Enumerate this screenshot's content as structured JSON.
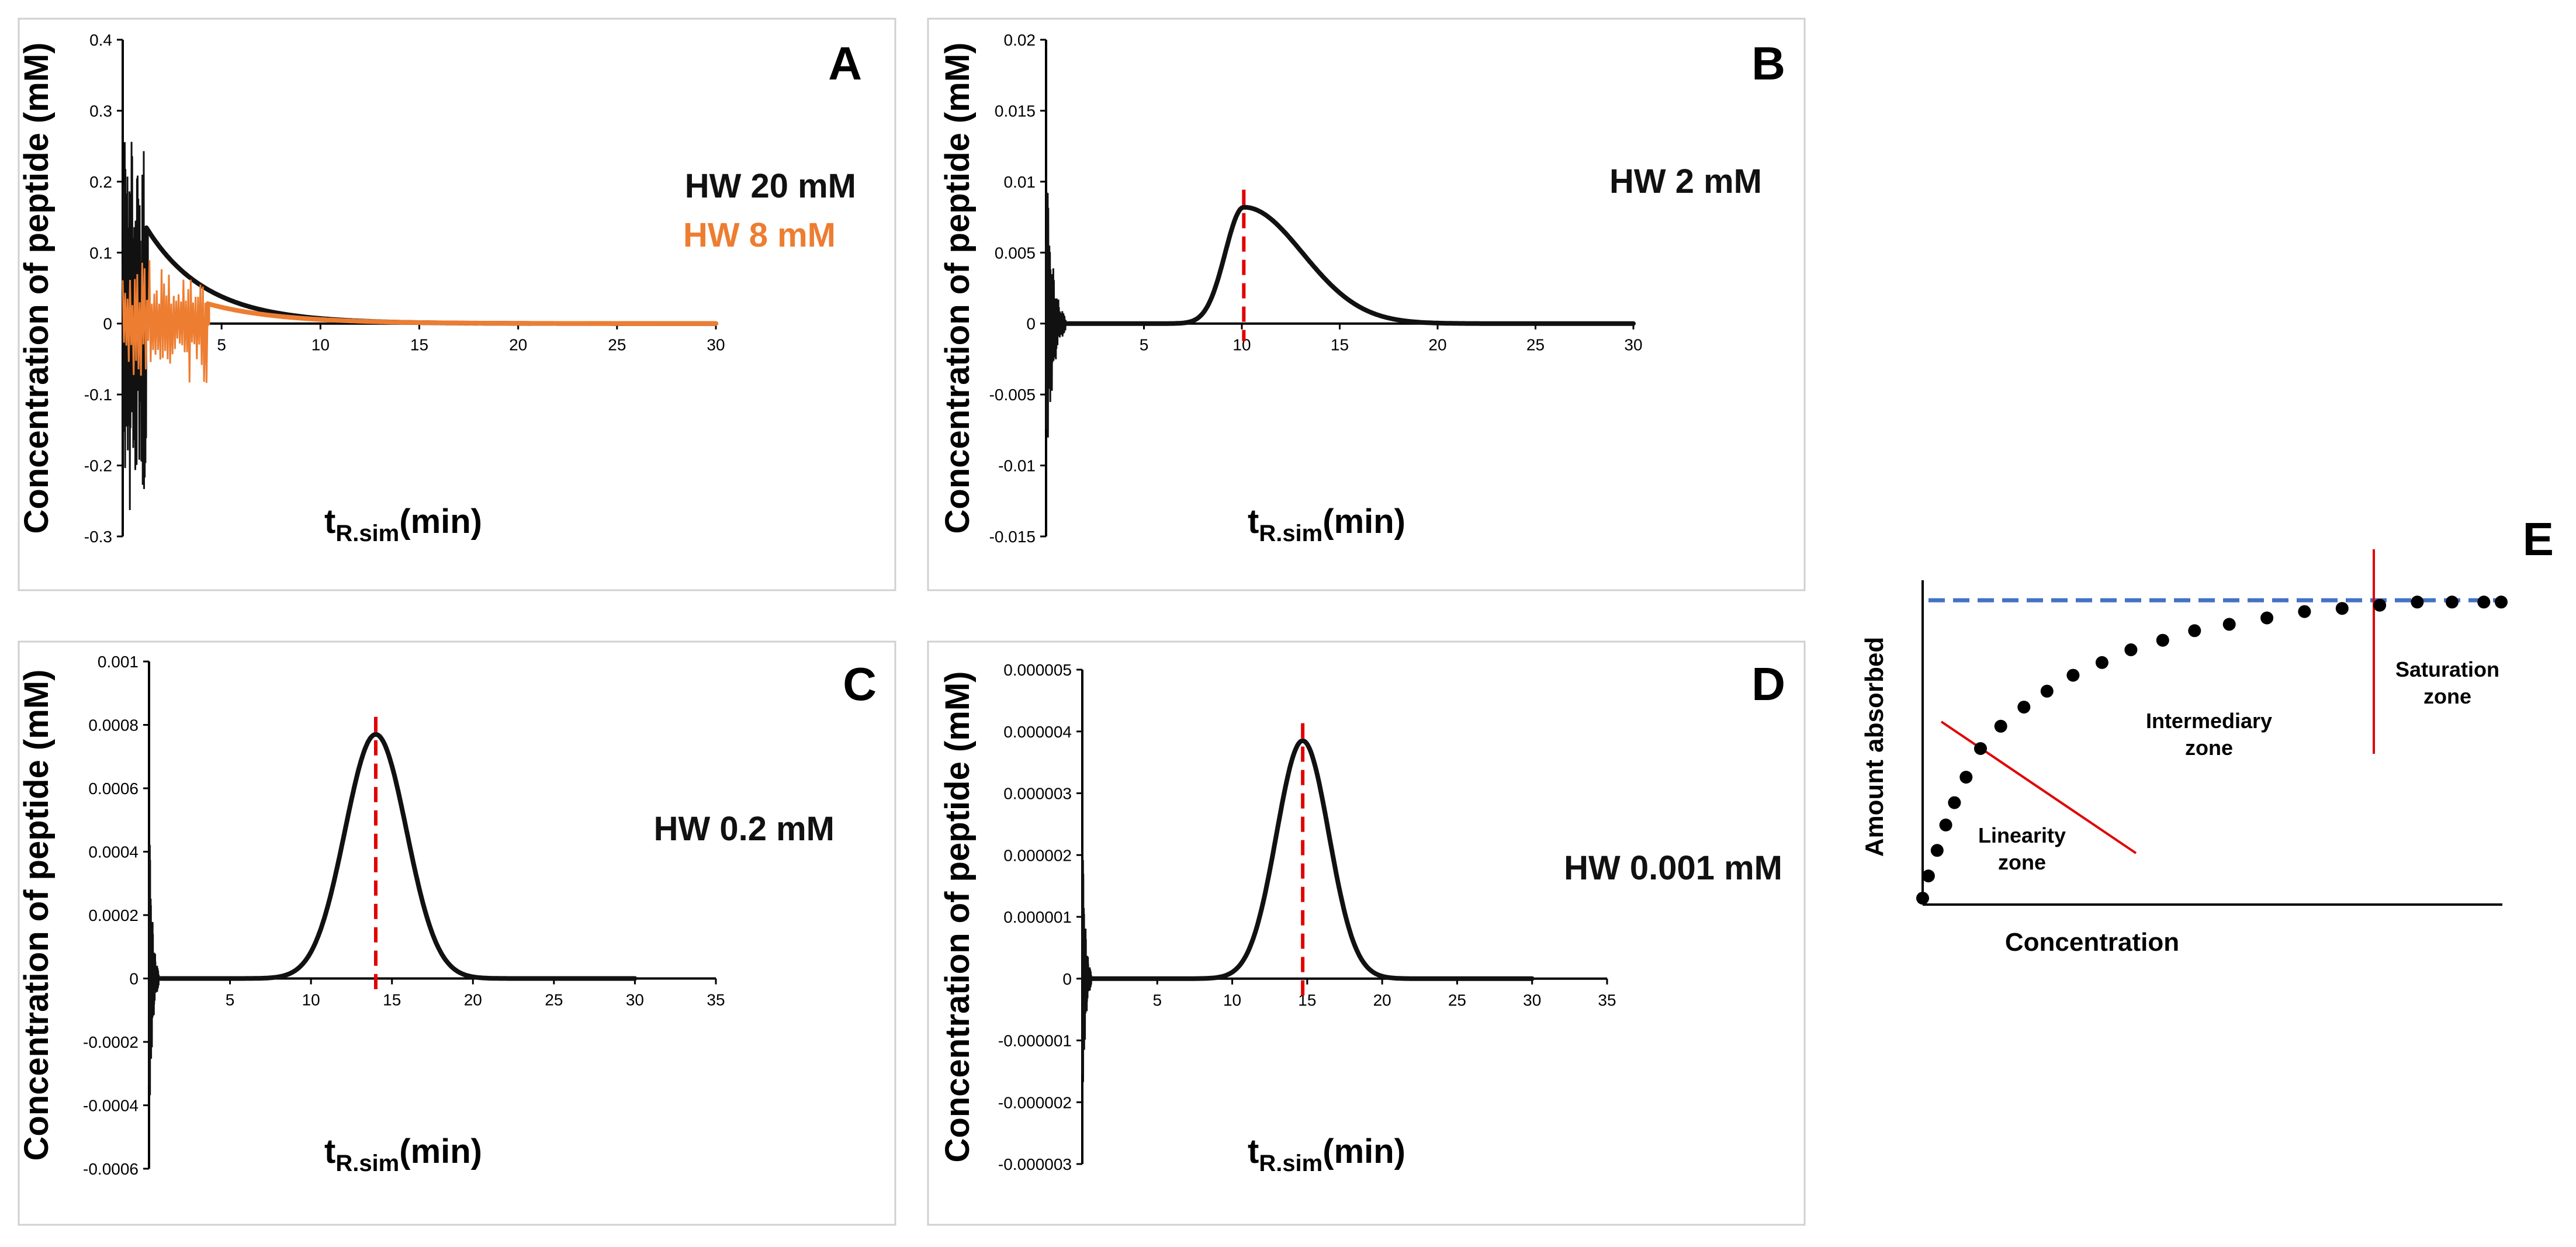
{
  "chart_data": [
    {
      "id": "A",
      "type": "line",
      "panel_label": "A",
      "xlabel": "t",
      "xlabel_sub": "R.sim",
      "xlabel_unit": "(min)",
      "ylabel": "Concentration of peptide (mM)",
      "xlim": [
        0,
        30
      ],
      "xticks": [
        5,
        10,
        15,
        20,
        25,
        30
      ],
      "xtick_labels": [
        "5",
        "10",
        "15",
        "20",
        "25",
        "30"
      ],
      "ylim": [
        -0.3,
        0.4
      ],
      "yticks": [
        -0.3,
        -0.2,
        -0.1,
        0,
        0.1,
        0.2,
        0.3,
        0.4
      ],
      "ytick_labels": [
        "-0.3",
        "-0.2",
        "-0.1",
        "0",
        "0.1",
        "0.2",
        "0.3",
        "0.4"
      ],
      "annotations": [
        {
          "text": "HW 20 mM",
          "color": "#111111"
        },
        {
          "text": "HW 8 mM",
          "color": "#ed7d31"
        }
      ],
      "series": [
        {
          "name": "HW 20 mM",
          "color": "#111111",
          "style": "front",
          "front_time": 1.2,
          "front_value": 0.135,
          "decay": 3.0,
          "noise_until": 1.2,
          "noise_amp": 0.29
        },
        {
          "name": "HW 8 mM",
          "color": "#ed7d31",
          "style": "front",
          "front_time": 4.3,
          "front_value": 0.028,
          "decay": 3.6,
          "noise_until": 4.3,
          "noise_amp": 0.09
        }
      ],
      "peak_marker_x": null
    },
    {
      "id": "B",
      "type": "line",
      "panel_label": "B",
      "xlabel": "t",
      "xlabel_sub": "R.sim",
      "xlabel_unit": "(min)",
      "ylabel": "Concentration of peptide (mM)",
      "xlim": [
        0,
        30
      ],
      "xticks": [
        5,
        10,
        15,
        20,
        25,
        30
      ],
      "xtick_labels": [
        "5",
        "10",
        "15",
        "20",
        "25",
        "30"
      ],
      "ylim": [
        -0.015,
        0.02
      ],
      "yticks": [
        -0.015,
        -0.01,
        -0.005,
        0,
        0.005,
        0.01,
        0.015,
        0.02
      ],
      "ytick_labels": [
        "-0.015",
        "-0.01",
        "-0.005",
        "0",
        "0.005",
        "0.01",
        "0.015",
        "0.02"
      ],
      "annotations": [
        {
          "text": "HW 2 mM",
          "color": "#111111"
        }
      ],
      "series": [
        {
          "name": "HW 2 mM",
          "color": "#111111",
          "style": "tailing",
          "peak_x": 10.1,
          "peak_y": 0.0082,
          "sigma_left": 0.95,
          "sigma_right": 3.0,
          "noise_until": 1.0,
          "noise_amp": 0.012
        }
      ],
      "peak_marker_x": 10.1
    },
    {
      "id": "C",
      "type": "line",
      "panel_label": "C",
      "xlabel": "t",
      "xlabel_sub": "R.sim",
      "xlabel_unit": "(min)",
      "ylabel": "Concentration of peptide (mM)",
      "xlim": [
        0,
        35
      ],
      "xticks": [
        5,
        10,
        15,
        20,
        25,
        30,
        35
      ],
      "xtick_labels": [
        "5",
        "10",
        "15",
        "20",
        "25",
        "30",
        "35"
      ],
      "ylim": [
        -0.0006,
        0.001
      ],
      "yticks": [
        -0.0006,
        -0.0004,
        -0.0002,
        0,
        0.0002,
        0.0004,
        0.0006,
        0.0008,
        0.001
      ],
      "ytick_labels": [
        "-0.0006",
        "-0.0004",
        "-0.0002",
        "0",
        "0.0002",
        "0.0004",
        "0.0006",
        "0.0008",
        "0.001"
      ],
      "annotations": [
        {
          "text": "HW 0.2 mM",
          "color": "#111111"
        }
      ],
      "series": [
        {
          "name": "HW 0.2 mM",
          "color": "#111111",
          "style": "gauss",
          "peak_x": 14.0,
          "peak_y": 0.00077,
          "sigma": 1.9,
          "x_end": 30,
          "noise_until": 0.6,
          "noise_amp": 0.00055
        }
      ],
      "peak_marker_x": 14.0
    },
    {
      "id": "D",
      "type": "line",
      "panel_label": "D",
      "xlabel": "t",
      "xlabel_sub": "R.sim",
      "xlabel_unit": "(min)",
      "ylabel": "Concentration of peptide (mM)",
      "xlim": [
        0,
        35
      ],
      "xticks": [
        5,
        10,
        15,
        20,
        25,
        30,
        35
      ],
      "xtick_labels": [
        "5",
        "10",
        "15",
        "20",
        "25",
        "30",
        "35"
      ],
      "ylim": [
        -3e-06,
        5e-06
      ],
      "yticks": [
        -3e-06,
        -2e-06,
        -1e-06,
        0,
        1e-06,
        2e-06,
        3e-06,
        4e-06,
        5e-06
      ],
      "ytick_labels": [
        "-0.000003",
        "-0.000002",
        "-0.000001",
        "0",
        "0.000001",
        "0.000002",
        "0.000003",
        "0.000004",
        "0.000005"
      ],
      "annotations": [
        {
          "text": "HW 0.001 mM",
          "color": "#111111"
        }
      ],
      "series": [
        {
          "name": "HW 0.001 mM",
          "color": "#111111",
          "style": "gauss",
          "peak_x": 14.7,
          "peak_y": 3.85e-06,
          "sigma": 1.75,
          "x_end": 30,
          "noise_until": 0.6,
          "noise_amp": 2.5e-06
        }
      ],
      "peak_marker_x": 14.7
    },
    {
      "id": "E",
      "type": "scatter",
      "panel_label": "E",
      "xlabel": "Concentration",
      "ylabel": "Amount absorbed",
      "saturation_level": 0.95,
      "points": [
        [
          0.0,
          0.02
        ],
        [
          0.01,
          0.09
        ],
        [
          0.025,
          0.17
        ],
        [
          0.04,
          0.25
        ],
        [
          0.055,
          0.32
        ],
        [
          0.075,
          0.4
        ],
        [
          0.1,
          0.49
        ],
        [
          0.135,
          0.56
        ],
        [
          0.175,
          0.62
        ],
        [
          0.215,
          0.67
        ],
        [
          0.26,
          0.72
        ],
        [
          0.31,
          0.76
        ],
        [
          0.36,
          0.8
        ],
        [
          0.415,
          0.83
        ],
        [
          0.47,
          0.86
        ],
        [
          0.53,
          0.88
        ],
        [
          0.595,
          0.9
        ],
        [
          0.66,
          0.92
        ],
        [
          0.725,
          0.93
        ],
        [
          0.79,
          0.94
        ],
        [
          0.855,
          0.95
        ],
        [
          0.915,
          0.95
        ],
        [
          0.97,
          0.95
        ],
        [
          1.0,
          0.95
        ]
      ],
      "zones": [
        {
          "name": "linearity",
          "lines": [
            "Linearity",
            "zone"
          ]
        },
        {
          "name": "intermediary",
          "lines": [
            "Intermediary",
            "zone"
          ]
        },
        {
          "name": "saturation",
          "lines": [
            "Saturation",
            "zone"
          ]
        }
      ]
    }
  ]
}
